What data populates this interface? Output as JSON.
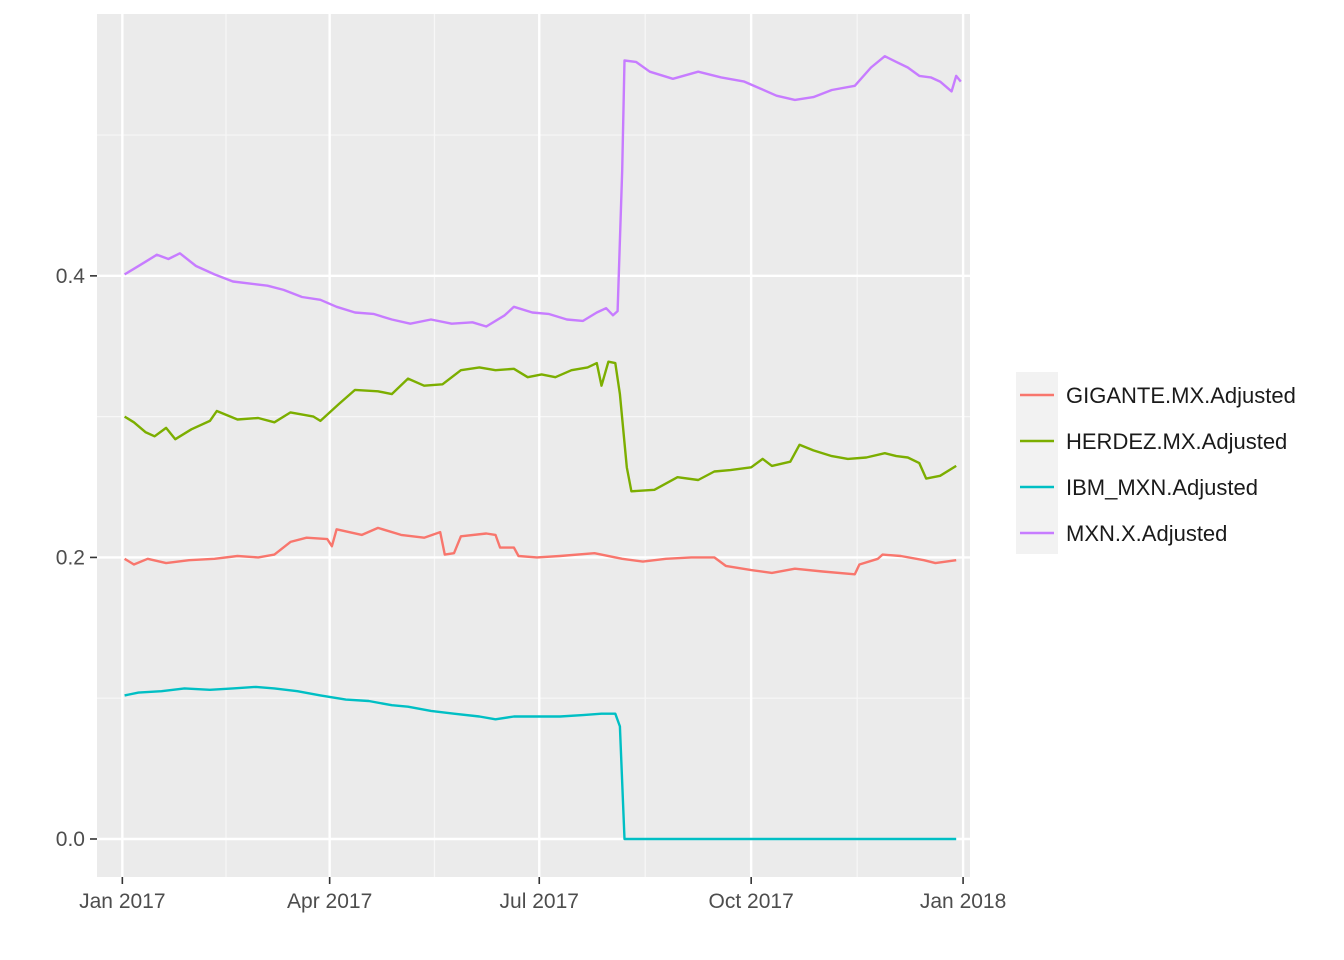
{
  "chart_data": {
    "type": "line",
    "title": "",
    "xlabel": "",
    "ylabel": "",
    "x_ticks": [
      "Jan 2017",
      "Apr 2017",
      "Jul 2017",
      "Oct 2017",
      "Jan 2018"
    ],
    "y_ticks": [
      "0.0",
      "0.2",
      "0.4"
    ],
    "xlim": [
      "2016-12-21",
      "2018-01-04"
    ],
    "ylim": [
      -0.027,
      0.586
    ],
    "grid": true,
    "legend_position": "right",
    "series": [
      {
        "name": "GIGANTE.MX.Adjusted",
        "color": "#F8766D",
        "points": [
          [
            "2017-01-02",
            0.199
          ],
          [
            "2017-01-06",
            0.195
          ],
          [
            "2017-01-12",
            0.199
          ],
          [
            "2017-01-20",
            0.196
          ],
          [
            "2017-01-30",
            0.198
          ],
          [
            "2017-02-10",
            0.199
          ],
          [
            "2017-02-20",
            0.201
          ],
          [
            "2017-03-01",
            0.2
          ],
          [
            "2017-03-08",
            0.202
          ],
          [
            "2017-03-15",
            0.211
          ],
          [
            "2017-03-22",
            0.214
          ],
          [
            "2017-03-31",
            0.213
          ],
          [
            "2017-04-02",
            0.208
          ],
          [
            "2017-04-04",
            0.22
          ],
          [
            "2017-04-15",
            0.216
          ],
          [
            "2017-04-22",
            0.221
          ],
          [
            "2017-05-02",
            0.216
          ],
          [
            "2017-05-12",
            0.214
          ],
          [
            "2017-05-19",
            0.218
          ],
          [
            "2017-05-21",
            0.202
          ],
          [
            "2017-05-25",
            0.203
          ],
          [
            "2017-05-28",
            0.215
          ],
          [
            "2017-06-08",
            0.217
          ],
          [
            "2017-06-12",
            0.216
          ],
          [
            "2017-06-14",
            0.207
          ],
          [
            "2017-06-20",
            0.207
          ],
          [
            "2017-06-22",
            0.201
          ],
          [
            "2017-06-30",
            0.2
          ],
          [
            "2017-07-10",
            0.201
          ],
          [
            "2017-07-25",
            0.203
          ],
          [
            "2017-08-06",
            0.199
          ],
          [
            "2017-08-15",
            0.197
          ],
          [
            "2017-08-25",
            0.199
          ],
          [
            "2017-09-05",
            0.2
          ],
          [
            "2017-09-15",
            0.2
          ],
          [
            "2017-09-20",
            0.194
          ],
          [
            "2017-10-01",
            0.191
          ],
          [
            "2017-10-10",
            0.189
          ],
          [
            "2017-10-20",
            0.192
          ],
          [
            "2017-11-01",
            0.19
          ],
          [
            "2017-11-15",
            0.188
          ],
          [
            "2017-11-17",
            0.195
          ],
          [
            "2017-11-25",
            0.199
          ],
          [
            "2017-11-27",
            0.202
          ],
          [
            "2017-12-05",
            0.201
          ],
          [
            "2017-12-15",
            0.198
          ],
          [
            "2017-12-20",
            0.196
          ],
          [
            "2017-12-29",
            0.198
          ]
        ]
      },
      {
        "name": "HERDEZ.MX.Adjusted",
        "color": "#7CAE00",
        "points": [
          [
            "2017-01-02",
            0.3
          ],
          [
            "2017-01-06",
            0.296
          ],
          [
            "2017-01-11",
            0.289
          ],
          [
            "2017-01-15",
            0.286
          ],
          [
            "2017-01-20",
            0.292
          ],
          [
            "2017-01-24",
            0.284
          ],
          [
            "2017-01-31",
            0.291
          ],
          [
            "2017-02-08",
            0.297
          ],
          [
            "2017-02-11",
            0.304
          ],
          [
            "2017-02-20",
            0.298
          ],
          [
            "2017-03-01",
            0.299
          ],
          [
            "2017-03-08",
            0.296
          ],
          [
            "2017-03-15",
            0.303
          ],
          [
            "2017-03-25",
            0.3
          ],
          [
            "2017-03-28",
            0.297
          ],
          [
            "2017-04-05",
            0.309
          ],
          [
            "2017-04-12",
            0.319
          ],
          [
            "2017-04-22",
            0.318
          ],
          [
            "2017-04-28",
            0.316
          ],
          [
            "2017-05-05",
            0.327
          ],
          [
            "2017-05-12",
            0.322
          ],
          [
            "2017-05-20",
            0.323
          ],
          [
            "2017-05-28",
            0.333
          ],
          [
            "2017-06-05",
            0.335
          ],
          [
            "2017-06-12",
            0.333
          ],
          [
            "2017-06-20",
            0.334
          ],
          [
            "2017-06-26",
            0.328
          ],
          [
            "2017-07-02",
            0.33
          ],
          [
            "2017-07-08",
            0.328
          ],
          [
            "2017-07-15",
            0.333
          ],
          [
            "2017-07-22",
            0.335
          ],
          [
            "2017-07-26",
            0.338
          ],
          [
            "2017-07-28",
            0.322
          ],
          [
            "2017-07-31",
            0.339
          ],
          [
            "2017-08-03",
            0.338
          ],
          [
            "2017-08-05",
            0.316
          ],
          [
            "2017-08-08",
            0.264
          ],
          [
            "2017-08-10",
            0.247
          ],
          [
            "2017-08-20",
            0.248
          ],
          [
            "2017-08-30",
            0.257
          ],
          [
            "2017-09-08",
            0.255
          ],
          [
            "2017-09-15",
            0.261
          ],
          [
            "2017-09-22",
            0.262
          ],
          [
            "2017-10-01",
            0.264
          ],
          [
            "2017-10-06",
            0.27
          ],
          [
            "2017-10-10",
            0.265
          ],
          [
            "2017-10-18",
            0.268
          ],
          [
            "2017-10-22",
            0.28
          ],
          [
            "2017-10-28",
            0.276
          ],
          [
            "2017-11-05",
            0.272
          ],
          [
            "2017-11-12",
            0.27
          ],
          [
            "2017-11-20",
            0.271
          ],
          [
            "2017-11-28",
            0.274
          ],
          [
            "2017-12-03",
            0.272
          ],
          [
            "2017-12-08",
            0.271
          ],
          [
            "2017-12-13",
            0.267
          ],
          [
            "2017-12-16",
            0.256
          ],
          [
            "2017-12-22",
            0.258
          ],
          [
            "2017-12-29",
            0.265
          ]
        ]
      },
      {
        "name": "IBM_MXN.Adjusted",
        "color": "#00BFC4",
        "points": [
          [
            "2017-01-02",
            0.102
          ],
          [
            "2017-01-08",
            0.104
          ],
          [
            "2017-01-18",
            0.105
          ],
          [
            "2017-01-28",
            0.107
          ],
          [
            "2017-02-08",
            0.106
          ],
          [
            "2017-02-18",
            0.107
          ],
          [
            "2017-02-28",
            0.108
          ],
          [
            "2017-03-08",
            0.107
          ],
          [
            "2017-03-18",
            0.105
          ],
          [
            "2017-03-28",
            0.102
          ],
          [
            "2017-04-08",
            0.099
          ],
          [
            "2017-04-18",
            0.098
          ],
          [
            "2017-04-28",
            0.095
          ],
          [
            "2017-05-05",
            0.094
          ],
          [
            "2017-05-15",
            0.091
          ],
          [
            "2017-05-25",
            0.089
          ],
          [
            "2017-06-05",
            0.087
          ],
          [
            "2017-06-12",
            0.085
          ],
          [
            "2017-06-20",
            0.087
          ],
          [
            "2017-06-30",
            0.087
          ],
          [
            "2017-07-10",
            0.087
          ],
          [
            "2017-07-20",
            0.088
          ],
          [
            "2017-07-28",
            0.089
          ],
          [
            "2017-08-03",
            0.089
          ],
          [
            "2017-08-05",
            0.08
          ],
          [
            "2017-08-07",
            0.0
          ],
          [
            "2017-12-29",
            0.0
          ]
        ]
      },
      {
        "name": "MXN.X.Adjusted",
        "color": "#C77CFF",
        "points": [
          [
            "2017-01-02",
            0.401
          ],
          [
            "2017-01-06",
            0.405
          ],
          [
            "2017-01-11",
            0.41
          ],
          [
            "2017-01-16",
            0.415
          ],
          [
            "2017-01-21",
            0.412
          ],
          [
            "2017-01-26",
            0.416
          ],
          [
            "2017-02-02",
            0.407
          ],
          [
            "2017-02-10",
            0.401
          ],
          [
            "2017-02-18",
            0.396
          ],
          [
            "2017-02-28",
            0.394
          ],
          [
            "2017-03-05",
            0.393
          ],
          [
            "2017-03-12",
            0.39
          ],
          [
            "2017-03-20",
            0.385
          ],
          [
            "2017-03-28",
            0.383
          ],
          [
            "2017-04-04",
            0.378
          ],
          [
            "2017-04-12",
            0.374
          ],
          [
            "2017-04-20",
            0.373
          ],
          [
            "2017-04-28",
            0.369
          ],
          [
            "2017-05-06",
            0.366
          ],
          [
            "2017-05-15",
            0.369
          ],
          [
            "2017-05-24",
            0.366
          ],
          [
            "2017-06-02",
            0.367
          ],
          [
            "2017-06-08",
            0.364
          ],
          [
            "2017-06-16",
            0.372
          ],
          [
            "2017-06-20",
            0.378
          ],
          [
            "2017-06-28",
            0.374
          ],
          [
            "2017-07-05",
            0.373
          ],
          [
            "2017-07-13",
            0.369
          ],
          [
            "2017-07-20",
            0.368
          ],
          [
            "2017-07-26",
            0.374
          ],
          [
            "2017-07-30",
            0.377
          ],
          [
            "2017-08-02",
            0.372
          ],
          [
            "2017-08-04",
            0.375
          ],
          [
            "2017-08-06",
            0.475
          ],
          [
            "2017-08-07",
            0.553
          ],
          [
            "2017-08-12",
            0.552
          ],
          [
            "2017-08-18",
            0.545
          ],
          [
            "2017-08-28",
            0.54
          ],
          [
            "2017-09-08",
            0.545
          ],
          [
            "2017-09-18",
            0.541
          ],
          [
            "2017-09-28",
            0.538
          ],
          [
            "2017-10-05",
            0.533
          ],
          [
            "2017-10-12",
            0.528
          ],
          [
            "2017-10-20",
            0.525
          ],
          [
            "2017-10-28",
            0.527
          ],
          [
            "2017-11-05",
            0.532
          ],
          [
            "2017-11-15",
            0.535
          ],
          [
            "2017-11-22",
            0.548
          ],
          [
            "2017-11-28",
            0.556
          ],
          [
            "2017-12-03",
            0.552
          ],
          [
            "2017-12-08",
            0.548
          ],
          [
            "2017-12-13",
            0.542
          ],
          [
            "2017-12-18",
            0.541
          ],
          [
            "2017-12-22",
            0.538
          ],
          [
            "2017-12-27",
            0.531
          ],
          [
            "2017-12-29",
            0.542
          ],
          [
            "2017-12-31",
            0.538
          ]
        ]
      }
    ]
  }
}
